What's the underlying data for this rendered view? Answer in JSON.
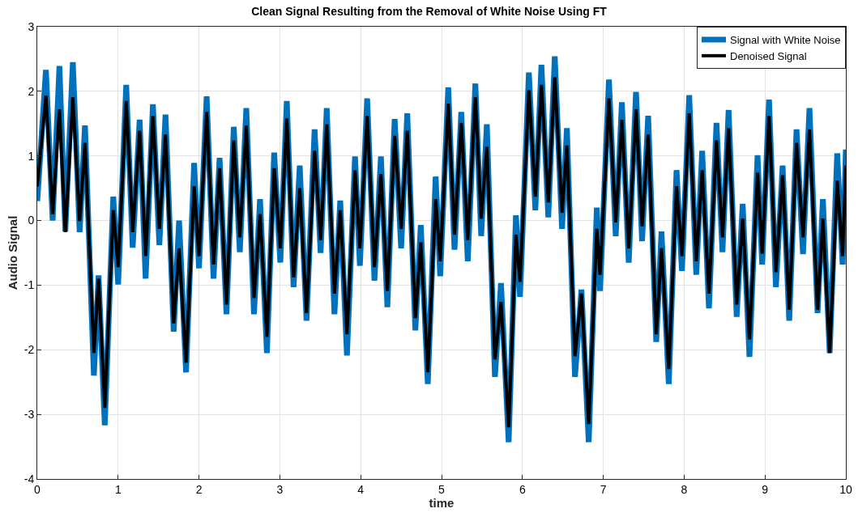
{
  "chart_data": {
    "type": "line",
    "title": "Clean Signal Resulting from the Removal of White Noise Using FT",
    "xlabel": "time",
    "ylabel": "Audio Signal",
    "xlim": [
      0,
      10
    ],
    "xticks": [
      0,
      1,
      2,
      3,
      4,
      5,
      6,
      7,
      8,
      9,
      10
    ],
    "ylim": [
      -4,
      3
    ],
    "yticks": [
      -4,
      -3,
      -2,
      -1,
      0,
      1,
      2,
      3
    ],
    "grid": true,
    "legend": "top right",
    "marker": "none",
    "line_style": "solid",
    "series": [
      {
        "name": "Signal with White Noise",
        "color": "#0072bd",
        "x": [
          0,
          0.107,
          0.19,
          0.274,
          0.347,
          0.44,
          0.524,
          0.59,
          0.7,
          0.758,
          0.835,
          0.94,
          1.0,
          1.1,
          1.18,
          1.266,
          1.34,
          1.43,
          1.51,
          1.586,
          1.687,
          1.754,
          1.84,
          1.94,
          2.0,
          2.095,
          2.18,
          2.255,
          2.34,
          2.43,
          2.505,
          2.585,
          2.68,
          2.755,
          2.84,
          2.93,
          3.006,
          3.086,
          3.17,
          3.246,
          3.33,
          3.43,
          3.504,
          3.58,
          3.675,
          3.747,
          3.83,
          3.93,
          3.99,
          4.08,
          4.17,
          4.25,
          4.33,
          4.42,
          4.5,
          4.576,
          4.676,
          4.743,
          4.83,
          4.927,
          4.983,
          5.083,
          5.16,
          5.244,
          5.324,
          5.418,
          5.49,
          5.56,
          5.66,
          5.735,
          5.83,
          5.92,
          5.97,
          6.08,
          6.16,
          6.235,
          6.32,
          6.4,
          6.49,
          6.55,
          6.65,
          6.73,
          6.82,
          6.92,
          6.96,
          7.07,
          7.154,
          7.23,
          7.315,
          7.405,
          7.48,
          7.555,
          7.655,
          7.72,
          7.81,
          7.906,
          7.973,
          8.063,
          8.15,
          8.223,
          8.307,
          8.4,
          8.474,
          8.55,
          8.65,
          8.724,
          8.808,
          8.908,
          8.965,
          9.05,
          9.135,
          9.218,
          9.3,
          9.39,
          9.47,
          9.55,
          9.65,
          9.716,
          9.8,
          9.893,
          9.96,
          10
        ],
        "values": [
          0.3,
          2.33,
          0.0,
          2.39,
          -0.17,
          2.45,
          -0.18,
          1.47,
          -2.4,
          -0.85,
          -3.17,
          0.37,
          -0.99,
          2.1,
          -0.42,
          1.56,
          -0.9,
          1.8,
          -0.38,
          1.64,
          -1.72,
          0.0,
          -2.35,
          0.89,
          -0.74,
          1.92,
          -0.9,
          0.97,
          -1.45,
          1.45,
          -0.49,
          1.74,
          -1.45,
          0.33,
          -2.05,
          1.05,
          -0.65,
          1.85,
          -1.03,
          0.85,
          -1.55,
          1.41,
          -0.5,
          1.74,
          -1.45,
          0.31,
          -2.09,
          0.99,
          -0.7,
          1.89,
          -0.93,
          0.99,
          -1.34,
          1.57,
          -0.43,
          1.66,
          -1.7,
          -0.07,
          -2.53,
          0.68,
          -0.86,
          2.06,
          -0.45,
          1.68,
          -0.63,
          2.12,
          -0.24,
          1.49,
          -2.42,
          -0.97,
          -3.43,
          0.08,
          -1.18,
          2.29,
          0.16,
          2.41,
          0.05,
          2.54,
          -0.13,
          1.43,
          -2.42,
          -1.07,
          -3.43,
          0.2,
          -1.09,
          2.18,
          -0.24,
          1.83,
          -0.65,
          1.99,
          -0.32,
          1.62,
          -1.88,
          -0.17,
          -2.53,
          0.78,
          -0.78,
          1.94,
          -0.84,
          1.08,
          -1.36,
          1.51,
          -0.49,
          1.71,
          -1.49,
          0.26,
          -2.11,
          1.01,
          -0.68,
          1.87,
          -1.03,
          0.85,
          -1.55,
          1.41,
          -0.52,
          1.74,
          -1.43,
          0.33,
          -2.05,
          1.04,
          -0.68,
          1.1
        ]
      },
      {
        "name": "Denoised Signal",
        "color": "#000000",
        "x": [
          0,
          0.107,
          0.19,
          0.274,
          0.347,
          0.44,
          0.524,
          0.59,
          0.7,
          0.758,
          0.835,
          0.94,
          1.0,
          1.1,
          1.18,
          1.266,
          1.34,
          1.43,
          1.51,
          1.586,
          1.687,
          1.754,
          1.84,
          1.94,
          2.0,
          2.095,
          2.18,
          2.255,
          2.34,
          2.43,
          2.505,
          2.585,
          2.68,
          2.755,
          2.84,
          2.93,
          3.006,
          3.086,
          3.17,
          3.246,
          3.33,
          3.43,
          3.504,
          3.58,
          3.675,
          3.747,
          3.83,
          3.93,
          3.99,
          4.08,
          4.17,
          4.25,
          4.33,
          4.42,
          4.5,
          4.576,
          4.676,
          4.743,
          4.83,
          4.927,
          4.983,
          5.083,
          5.16,
          5.244,
          5.324,
          5.418,
          5.49,
          5.56,
          5.66,
          5.735,
          5.83,
          5.92,
          5.97,
          6.08,
          6.16,
          6.235,
          6.32,
          6.4,
          6.49,
          6.55,
          6.65,
          6.73,
          6.82,
          6.92,
          6.96,
          7.07,
          7.154,
          7.23,
          7.315,
          7.405,
          7.48,
          7.555,
          7.655,
          7.72,
          7.81,
          7.906,
          7.973,
          8.063,
          8.15,
          8.223,
          8.307,
          8.4,
          8.474,
          8.55,
          8.65,
          8.724,
          8.808,
          8.908,
          8.965,
          9.05,
          9.135,
          9.218,
          9.3,
          9.39,
          9.47,
          9.55,
          9.65,
          9.716,
          9.8,
          9.893,
          9.96,
          10
        ],
        "values": [
          0.53,
          1.93,
          0.1,
          1.72,
          -0.18,
          1.91,
          -0.01,
          1.2,
          -2.05,
          -0.9,
          -2.9,
          0.16,
          -0.72,
          1.85,
          -0.18,
          1.39,
          -0.55,
          1.62,
          -0.13,
          1.33,
          -1.59,
          -0.43,
          -2.2,
          0.53,
          -0.55,
          1.68,
          -0.68,
          0.81,
          -1.3,
          1.24,
          -0.26,
          1.47,
          -1.2,
          0.1,
          -1.8,
          0.81,
          -0.43,
          1.58,
          -0.88,
          0.5,
          -1.43,
          1.08,
          -0.3,
          1.49,
          -1.13,
          0.16,
          -1.76,
          0.78,
          -0.43,
          1.62,
          -0.72,
          0.72,
          -1.09,
          1.31,
          -0.13,
          1.39,
          -1.51,
          -0.34,
          -2.35,
          0.33,
          -0.63,
          1.81,
          -0.22,
          1.51,
          -0.3,
          1.91,
          0.03,
          1.14,
          -2.15,
          -1.26,
          -3.2,
          -0.22,
          -0.95,
          2.02,
          0.37,
          2.1,
          0.28,
          2.22,
          0.12,
          1.16,
          -2.1,
          -1.13,
          -3.15,
          -0.13,
          -0.84,
          1.89,
          -0.03,
          1.56,
          -0.43,
          1.72,
          -0.09,
          1.33,
          -1.76,
          -0.43,
          -2.3,
          0.53,
          -0.55,
          1.66,
          -0.63,
          0.78,
          -1.13,
          1.24,
          -0.26,
          1.43,
          -1.3,
          0.03,
          -1.84,
          0.74,
          -0.51,
          1.62,
          -0.8,
          0.7,
          -1.38,
          1.2,
          -0.26,
          1.41,
          -1.38,
          0.03,
          -2.05,
          0.62,
          -0.55,
          0.85
        ]
      }
    ]
  }
}
